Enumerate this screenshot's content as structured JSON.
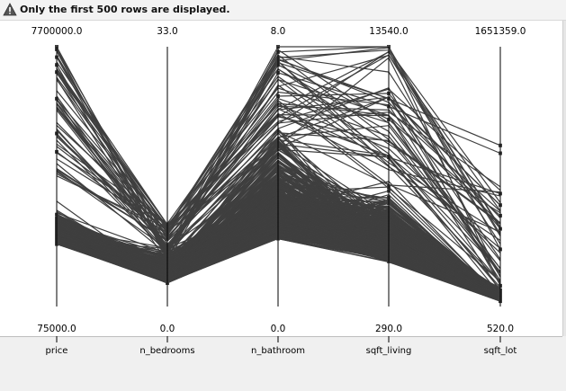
{
  "banner": {
    "message": "Only the first 500 rows are displayed.",
    "icon": "warning-triangle-icon"
  },
  "chart_data": {
    "type": "parallel-coordinates",
    "line_color": "#3f3f3f",
    "axes": [
      {
        "name": "price",
        "max_label": "7700000.0",
        "min_label": "75000.0",
        "min": 75000,
        "max": 7700000
      },
      {
        "name": "n_bedrooms",
        "max_label": "33.0",
        "min_label": "0.0",
        "min": 0,
        "max": 33
      },
      {
        "name": "n_bathroom",
        "max_label": "8.0",
        "min_label": "0.0",
        "min": 0,
        "max": 8
      },
      {
        "name": "sqft_living",
        "max_label": "13540.0",
        "min_label": "290.0",
        "min": 290,
        "max": 13540
      },
      {
        "name": "sqft_lot",
        "max_label": "1651359.0",
        "min_label": "520.0",
        "min": 520,
        "max": 1651359
      }
    ],
    "rows_displayed": 500
  }
}
